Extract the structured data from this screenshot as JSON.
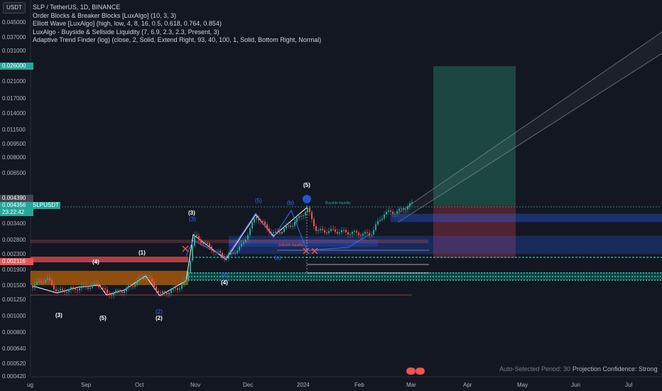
{
  "currency_button": "USDT",
  "legend": [
    "SLP / TetherUS, 1D, BINANCE",
    "Order Blocks & Breaker Blocks [LuxAlgo] (10, 3, 3)",
    "Elliott Wave [LuxAlgo] (high, low, 4, 8, 16, 0.5, 0.618, 0.764, 0.854)",
    "LuxAlgo - Buyside & Sellside Liquidity (7, 6.9, 2.3, 2.3, Present, 3)",
    "Adaptive Trend Finder (log) (close, 2, Solid, Extend Right, 93, 40, 100, 1, Solid, Bottom Right, Normal)"
  ],
  "price_axis": [
    "0.045000",
    "0.037000",
    "0.031000",
    "0.021000",
    "0.017000",
    "0.014000",
    "0.011500",
    "0.009500",
    "0.008000",
    "0.006500",
    "0.003400",
    "0.002800",
    "0.002300",
    "0.001900",
    "0.001500",
    "0.001250",
    "0.001000",
    "0.000800",
    "0.000640",
    "0.000520",
    "0.000420"
  ],
  "price_tags": {
    "target": "0.026000",
    "upper": "0.004390",
    "current": "0.004356",
    "symbol": "SLPUSDT",
    "countdown": "23:22:42",
    "stop": "0.002116"
  },
  "time_axis": [
    "ug",
    "Sep",
    "Oct",
    "Nov",
    "Dec",
    "2024",
    "Feb",
    "Mar",
    "Apr",
    "May",
    "Jun",
    "Jul"
  ],
  "wave_labels_white": [
    "(3)",
    "(3)",
    "(5)",
    "(1)",
    "(4)",
    "(2)",
    "(4)",
    "(5)"
  ],
  "wave_labels_blue": [
    "(3)",
    "(5)",
    "(b)",
    "(2)",
    "(4)",
    "(a)"
  ],
  "liquidity_labels": [
    "Buyside liquidity",
    "Sellside liquidity"
  ],
  "footer": {
    "period": "Auto-Selected Period: 30",
    "confidence": "Projection Confidence: Strong"
  },
  "colors": {
    "background": "#131722",
    "candle_up": "#26a69a",
    "candle_down": "#ef5350",
    "target_zone": "#1d4f47",
    "stop_zone": "#5b2633",
    "order_block_blue": "#2962ff",
    "order_block_orange": "#f57c00",
    "buyside": "#089981"
  }
}
